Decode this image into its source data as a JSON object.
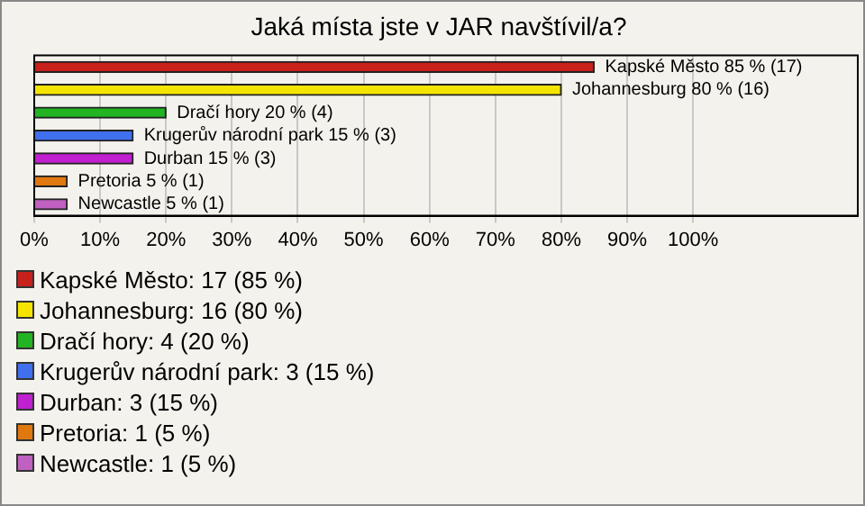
{
  "chart_data": {
    "type": "bar",
    "orientation": "horizontal",
    "title": "Jaká místa jste v JAR navštívil/a?",
    "categories": [
      "Kapské Město 85 % (17)",
      "Johannesburg 80 % (16)",
      "Dračí hory 20 % (4)",
      "Krugerův národní park 15 % (3)",
      "Durban 15 % (3)",
      "Pretoria 5 % (1)",
      "Newcastle 5 % (1)"
    ],
    "values": [
      85,
      80,
      20,
      15,
      15,
      5,
      5
    ],
    "colors": [
      "#c8201a",
      "#f5e400",
      "#22b422",
      "#4070ee",
      "#c020d0",
      "#e07810",
      "#c060c0"
    ],
    "xlim": [
      0,
      125
    ],
    "xticks": [
      {
        "value": 0,
        "label": "0%"
      },
      {
        "value": 10,
        "label": "10%"
      },
      {
        "value": 20,
        "label": "20%"
      },
      {
        "value": 30,
        "label": "30%"
      },
      {
        "value": 40,
        "label": "40%"
      },
      {
        "value": 50,
        "label": "50%"
      },
      {
        "value": 60,
        "label": "60%"
      },
      {
        "value": 70,
        "label": "70%"
      },
      {
        "value": 80,
        "label": "80%"
      },
      {
        "value": 90,
        "label": "90%"
      },
      {
        "value": 100,
        "label": "100%"
      }
    ],
    "grid": "x",
    "tick_labels": "x",
    "annotations": [
      "Kapské Město: 17 (85 %)",
      "Johannesburg: 16 (80 %)",
      "Dračí hory: 4 (20 %)",
      "Krugerův národní park: 3 (15 %)",
      "Durban: 3 (15 %)",
      "Pretoria: 1 (5 %)",
      "Newcastle: 1 (5 %)"
    ]
  }
}
